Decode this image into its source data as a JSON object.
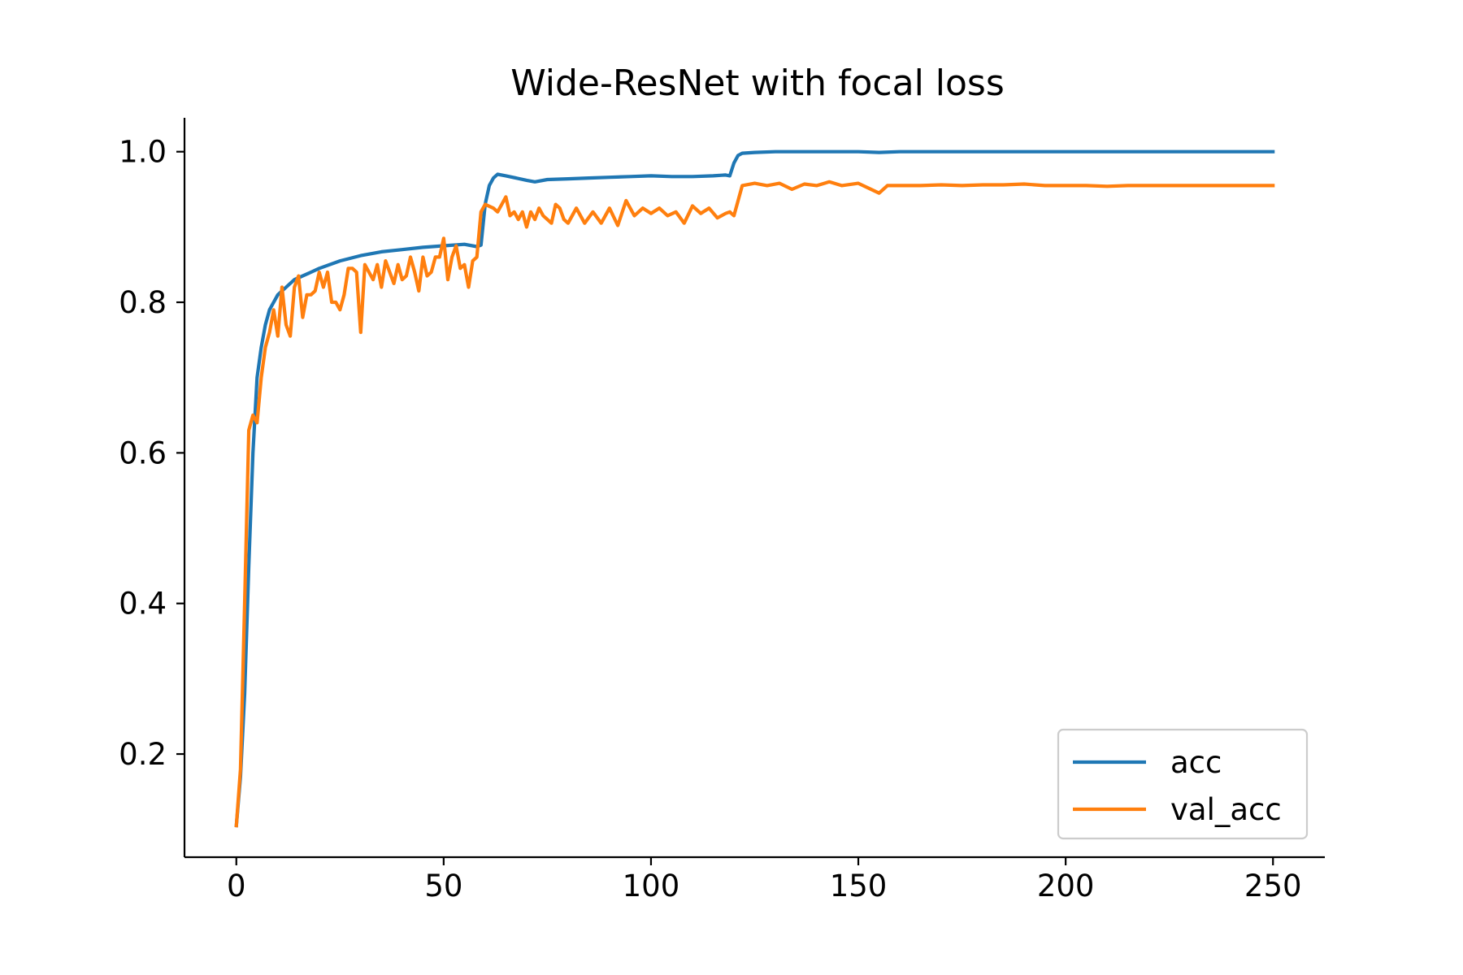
{
  "chart_data": {
    "type": "line",
    "title": "Wide-ResNet with focal loss",
    "xlabel": "",
    "ylabel": "",
    "xlim": [
      -12.5,
      262.5
    ],
    "ylim": [
      0.063,
      1.045
    ],
    "x_ticks": [
      0,
      50,
      100,
      150,
      200,
      250
    ],
    "x_tick_labels": [
      "0",
      "50",
      "100",
      "150",
      "200",
      "250"
    ],
    "y_ticks": [
      0.2,
      0.4,
      0.6,
      0.8,
      1.0
    ],
    "y_tick_labels": [
      "0.2",
      "0.4",
      "0.6",
      "0.8",
      "1.0"
    ],
    "grid": false,
    "legend_position": "lower-right",
    "series": [
      {
        "name": "acc",
        "color": "#1f77b4",
        "x": [
          0,
          1,
          2,
          3,
          4,
          5,
          6,
          7,
          8,
          9,
          10,
          12,
          14,
          16,
          18,
          20,
          25,
          30,
          35,
          40,
          45,
          50,
          55,
          58,
          59,
          60,
          61,
          62,
          63,
          65,
          70,
          72,
          75,
          80,
          85,
          90,
          95,
          100,
          105,
          110,
          115,
          118,
          119,
          120,
          121,
          122,
          125,
          130,
          150,
          155,
          160,
          200,
          250
        ],
        "y": [
          0.105,
          0.17,
          0.28,
          0.45,
          0.6,
          0.7,
          0.74,
          0.77,
          0.79,
          0.8,
          0.81,
          0.82,
          0.83,
          0.835,
          0.84,
          0.845,
          0.855,
          0.862,
          0.867,
          0.87,
          0.873,
          0.875,
          0.877,
          0.874,
          0.876,
          0.93,
          0.955,
          0.965,
          0.97,
          0.968,
          0.962,
          0.96,
          0.963,
          0.964,
          0.965,
          0.966,
          0.967,
          0.968,
          0.967,
          0.967,
          0.968,
          0.969,
          0.968,
          0.985,
          0.995,
          0.998,
          0.999,
          1.0,
          1.0,
          0.999,
          1.0,
          1.0,
          1.0
        ]
      },
      {
        "name": "val_acc",
        "color": "#ff7f0e",
        "x": [
          0,
          1,
          2,
          3,
          4,
          5,
          6,
          7,
          8,
          9,
          10,
          11,
          12,
          13,
          14,
          15,
          16,
          17,
          18,
          19,
          20,
          21,
          22,
          23,
          24,
          25,
          26,
          27,
          28,
          29,
          30,
          31,
          32,
          33,
          34,
          35,
          36,
          37,
          38,
          39,
          40,
          41,
          42,
          43,
          44,
          45,
          46,
          47,
          48,
          49,
          50,
          51,
          52,
          53,
          54,
          55,
          56,
          57,
          58,
          59,
          60,
          62,
          63,
          64,
          65,
          66,
          67,
          68,
          69,
          70,
          71,
          72,
          73,
          74,
          75,
          76,
          77,
          78,
          79,
          80,
          82,
          84,
          86,
          88,
          90,
          92,
          94,
          96,
          98,
          100,
          102,
          104,
          106,
          108,
          110,
          112,
          114,
          116,
          118,
          119,
          120,
          122,
          125,
          128,
          131,
          134,
          137,
          140,
          143,
          146,
          150,
          155,
          157,
          160,
          165,
          170,
          175,
          180,
          185,
          190,
          195,
          200,
          205,
          210,
          215,
          220,
          225,
          230,
          235,
          240,
          245,
          250
        ],
        "y": [
          0.105,
          0.18,
          0.4,
          0.63,
          0.65,
          0.64,
          0.7,
          0.74,
          0.76,
          0.79,
          0.755,
          0.82,
          0.77,
          0.755,
          0.82,
          0.835,
          0.78,
          0.81,
          0.81,
          0.815,
          0.84,
          0.82,
          0.84,
          0.8,
          0.8,
          0.79,
          0.81,
          0.845,
          0.845,
          0.84,
          0.76,
          0.85,
          0.84,
          0.83,
          0.85,
          0.82,
          0.855,
          0.84,
          0.825,
          0.85,
          0.83,
          0.835,
          0.86,
          0.84,
          0.815,
          0.86,
          0.835,
          0.84,
          0.86,
          0.86,
          0.885,
          0.83,
          0.86,
          0.875,
          0.845,
          0.85,
          0.82,
          0.855,
          0.86,
          0.92,
          0.93,
          0.925,
          0.92,
          0.93,
          0.94,
          0.915,
          0.92,
          0.91,
          0.92,
          0.9,
          0.92,
          0.91,
          0.925,
          0.915,
          0.91,
          0.905,
          0.93,
          0.925,
          0.91,
          0.905,
          0.925,
          0.905,
          0.92,
          0.905,
          0.925,
          0.902,
          0.935,
          0.915,
          0.925,
          0.918,
          0.925,
          0.915,
          0.92,
          0.905,
          0.928,
          0.918,
          0.925,
          0.912,
          0.918,
          0.92,
          0.915,
          0.955,
          0.958,
          0.955,
          0.958,
          0.95,
          0.957,
          0.955,
          0.96,
          0.955,
          0.958,
          0.945,
          0.955,
          0.955,
          0.955,
          0.956,
          0.955,
          0.956,
          0.956,
          0.957,
          0.955,
          0.955,
          0.955,
          0.954,
          0.955,
          0.955,
          0.955,
          0.955,
          0.955,
          0.955,
          0.955,
          0.955
        ]
      }
    ]
  }
}
